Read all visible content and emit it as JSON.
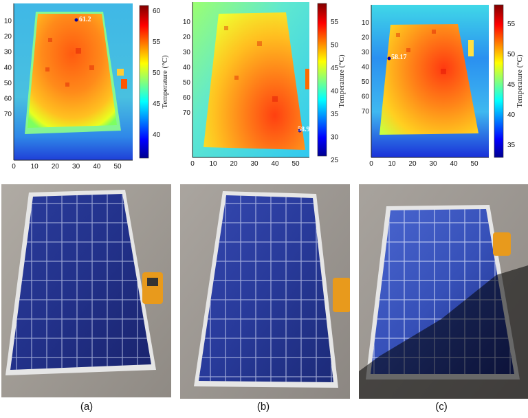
{
  "panels": [
    {
      "id": "a",
      "caption": "(a)",
      "hotspot_label": "61.2",
      "x_ticks": [
        "0",
        "10",
        "20",
        "30",
        "40",
        "50"
      ],
      "y_ticks": [
        "10",
        "20",
        "30",
        "40",
        "50",
        "60",
        "70"
      ],
      "colorbar_ticks": [
        "60",
        "55",
        "50",
        "45",
        "40"
      ],
      "colorbar_label": "Temperature (°C)",
      "shadow": false
    },
    {
      "id": "b",
      "caption": "(b)",
      "hotspot_label": "58.9",
      "x_ticks": [
        "0",
        "10",
        "20",
        "30",
        "40",
        "50"
      ],
      "y_ticks": [
        "10",
        "20",
        "30",
        "40",
        "50",
        "60",
        "70"
      ],
      "colorbar_ticks": [
        "55",
        "50",
        "45",
        "40",
        "35",
        "30",
        "25"
      ],
      "colorbar_label": "Temperature (°C)",
      "shadow": false
    },
    {
      "id": "c",
      "caption": "(c)",
      "hotspot_label": "58.17",
      "x_ticks": [
        "0",
        "10",
        "20",
        "30",
        "40",
        "50"
      ],
      "y_ticks": [
        "10",
        "20",
        "30",
        "40",
        "50",
        "60",
        "70"
      ],
      "colorbar_ticks": [
        "55",
        "50",
        "45",
        "40",
        "35"
      ],
      "colorbar_label": "Temperature (°C)",
      "shadow": true
    }
  ],
  "colors": {
    "jet_dark_blue": "#00008f",
    "jet_blue": "#0050ff",
    "jet_cyan": "#00ffff",
    "jet_yellow": "#ffff00",
    "jet_orange": "#ff7a00",
    "jet_red": "#c80000",
    "panel_blue": "#1f2f8c",
    "ground": "#9a9590",
    "frame_silver": "#d9d9d9",
    "meter_orange": "#e89a1c"
  }
}
